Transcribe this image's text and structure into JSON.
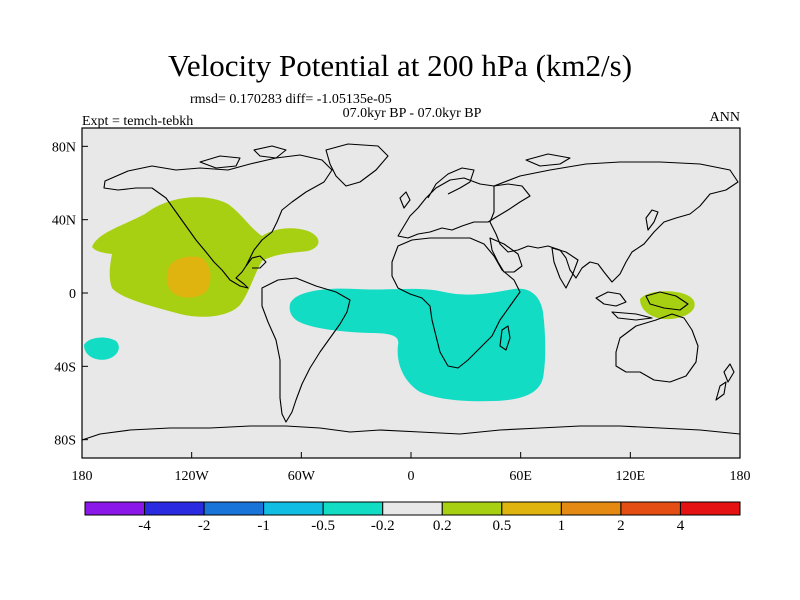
{
  "header": {
    "title": "Velocity Potential at 200 hPa (km2/s)",
    "stats": "rmsd= 0.170283 diff= -1.05135e-05",
    "subtitle": "07.0kyr BP - 07.0kyr BP",
    "experiment": "Expt = temch-tebkh",
    "season": "ANN"
  },
  "axes": {
    "y_ticks": [
      {
        "label": "80N",
        "value": 80
      },
      {
        "label": "40N",
        "value": 40
      },
      {
        "label": "0",
        "value": 0
      },
      {
        "label": "40S",
        "value": -40
      },
      {
        "label": "80S",
        "value": -80
      }
    ],
    "x_ticks": [
      {
        "label": "180",
        "value": -180
      },
      {
        "label": "120W",
        "value": -120
      },
      {
        "label": "60W",
        "value": -60
      },
      {
        "label": "0",
        "value": 0
      },
      {
        "label": "60E",
        "value": 60
      },
      {
        "label": "120E",
        "value": 120
      },
      {
        "label": "180",
        "value": 180
      }
    ],
    "lon_range": [
      -180,
      180
    ],
    "lat_range": [
      -90,
      90
    ]
  },
  "colorbar": {
    "colors": [
      "#8b17e8",
      "#2a2ae0",
      "#1874d8",
      "#12bde4",
      "#12dcc4",
      "#e8e8e8",
      "#a8d012",
      "#e0b40e",
      "#e48a12",
      "#e44e12",
      "#e41212"
    ],
    "labels": [
      "-4",
      "-2",
      "-1",
      "-0.5",
      "-0.2",
      "0.2",
      "0.5",
      "1",
      "2",
      "4"
    ]
  },
  "map_colors": {
    "background": "#e8e8e8",
    "positive_low": "#a8d012",
    "positive_mid": "#e0b40e",
    "negative_low": "#12dcc4"
  }
}
